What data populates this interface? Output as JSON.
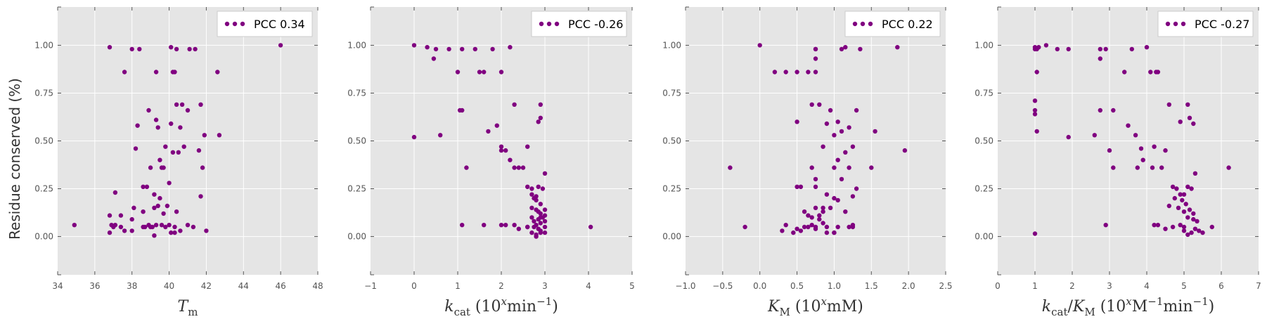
{
  "ylabel": "Residue conserved (%)",
  "colors": {
    "points": "#800080",
    "panel_bg": "#e5e5e5",
    "grid": "#ffffff",
    "axis_text": "#555555"
  },
  "chart_data": [
    {
      "type": "scatter",
      "xlabel": "T_m",
      "xlabel_display": "Tm",
      "legend": "PCC 0.34",
      "legend_position": "top-right",
      "grid": true,
      "xlim": [
        34,
        48
      ],
      "ylim": [
        -0.2,
        1.2
      ],
      "xticks": [
        "34",
        "36",
        "38",
        "40",
        "42",
        "44",
        "46",
        "48"
      ],
      "yticks": [
        "0.00",
        "0.25",
        "0.50",
        "0.75",
        "1.00"
      ],
      "x": [
        34.9,
        36.8,
        37.6,
        38.0,
        38.4,
        38.9,
        39.3,
        40.2,
        40.3,
        40.4,
        41.1,
        41.4,
        41.7,
        42.6,
        46.0,
        39.3,
        40.1,
        40.2,
        39.8,
        40.6,
        39.4,
        41.0,
        41.9,
        38.6,
        39.0,
        39.5,
        39.7,
        40.5,
        40.8,
        42.7,
        38.3,
        38.8,
        39.4,
        39.6,
        40.0,
        40.4,
        41.6,
        41.8,
        40.1,
        38.2,
        39.2,
        39.9,
        40.7,
        36.8,
        37.1,
        37.4,
        38.0,
        38.6,
        39.2,
        39.5,
        40.3,
        41.7,
        36.9,
        37.1,
        37.6,
        38.0,
        38.7,
        38.9,
        39.1,
        39.3,
        39.6,
        39.8,
        40.0,
        40.3,
        40.6,
        41.3,
        42.0,
        36.8,
        37.0,
        37.4,
        38.1,
        38.6,
        39.0,
        39.7,
        40.4,
        41.0,
        39.2,
        40.1
      ],
      "y": [
        0.06,
        0.99,
        0.86,
        0.98,
        0.98,
        0.66,
        0.86,
        0.86,
        0.86,
        0.98,
        0.98,
        0.98,
        0.69,
        0.86,
        1.0,
        0.61,
        0.59,
        0.44,
        0.47,
        0.57,
        0.57,
        0.66,
        0.53,
        0.26,
        0.36,
        0.4,
        0.36,
        0.44,
        0.47,
        0.53,
        0.58,
        0.26,
        0.16,
        0.36,
        0.28,
        0.69,
        0.45,
        0.36,
        0.99,
        0.46,
        0.22,
        0.16,
        0.69,
        0.11,
        0.23,
        0.11,
        0.09,
        0.13,
        0.15,
        0.2,
        0.05,
        0.21,
        0.06,
        0.06,
        0.03,
        0.03,
        0.05,
        0.06,
        0.05,
        0.06,
        0.06,
        0.05,
        0.06,
        0.02,
        0.03,
        0.05,
        0.03,
        0.02,
        0.05,
        0.05,
        0.15,
        0.05,
        0.05,
        0.12,
        0.13,
        0.06,
        0.005,
        0.02
      ]
    },
    {
      "type": "scatter",
      "xlabel": "k_cat (10^x min^-1)",
      "xlabel_display": "kcat (10^x min^-1)",
      "legend": "PCC -0.26",
      "legend_position": "top-right",
      "grid": true,
      "xlim": [
        -1,
        5
      ],
      "ylim": [
        -0.2,
        1.2
      ],
      "xticks": [
        "−1",
        "0",
        "1",
        "2",
        "3",
        "4",
        "5"
      ],
      "yticks": [
        "0.00",
        "0.25",
        "0.50",
        "0.75",
        "1.00"
      ],
      "x": [
        0.0,
        0.3,
        0.5,
        0.8,
        1.1,
        1.4,
        1.8,
        2.2,
        0.45,
        1.0,
        1.5,
        1.6,
        2.0,
        1.05,
        1.1,
        2.3,
        2.9,
        0.0,
        0.6,
        1.7,
        1.9,
        2.0,
        2.1,
        2.2,
        2.4,
        2.6,
        2.85,
        2.9,
        1.2,
        2.0,
        2.3,
        2.5,
        2.6,
        2.7,
        2.8,
        3.0,
        2.75,
        2.8,
        2.9,
        2.7,
        2.8,
        2.85,
        2.9,
        2.95,
        3.0,
        2.7,
        2.75,
        2.85,
        2.9,
        3.0,
        2.6,
        2.75,
        2.8,
        2.85,
        2.9,
        3.0,
        1.1,
        1.6,
        2.0,
        2.1,
        2.3,
        2.4,
        2.6,
        2.7,
        2.8,
        2.9,
        3.0,
        2.7,
        2.85,
        2.95,
        3.0,
        2.8,
        2.9,
        4.05
      ],
      "y": [
        1.0,
        0.99,
        0.98,
        0.98,
        0.98,
        0.98,
        0.98,
        0.99,
        0.93,
        0.86,
        0.86,
        0.86,
        0.86,
        0.66,
        0.66,
        0.69,
        0.69,
        0.52,
        0.53,
        0.55,
        0.58,
        0.47,
        0.45,
        0.4,
        0.36,
        0.47,
        0.6,
        0.62,
        0.36,
        0.45,
        0.36,
        0.36,
        0.26,
        0.22,
        0.21,
        0.33,
        0.2,
        0.19,
        0.17,
        0.15,
        0.14,
        0.13,
        0.12,
        0.1,
        0.11,
        0.1,
        0.08,
        0.09,
        0.07,
        0.08,
        0.05,
        0.05,
        0.06,
        0.04,
        0.03,
        0.02,
        0.06,
        0.06,
        0.06,
        0.06,
        0.06,
        0.04,
        0.05,
        0.02,
        0.01,
        0.02,
        0.05,
        0.25,
        0.26,
        0.25,
        0.14,
        0.0,
        0.1,
        0.05
      ]
    },
    {
      "type": "scatter",
      "xlabel": "K_M (10^x mM)",
      "xlabel_display": "KM (10^x mM)",
      "legend": "PCC 0.22",
      "legend_position": "top-right",
      "grid": true,
      "xlim": [
        -1.0,
        2.5
      ],
      "ylim": [
        -0.2,
        1.2
      ],
      "xticks": [
        "−1.0",
        "−0.5",
        "0.0",
        "0.5",
        "1.0",
        "1.5",
        "2.0",
        "2.5"
      ],
      "yticks": [
        "0.00",
        "0.25",
        "0.50",
        "0.75",
        "1.00"
      ],
      "x": [
        0.0,
        0.75,
        0.75,
        1.1,
        1.15,
        1.35,
        1.85,
        0.2,
        0.35,
        0.5,
        0.65,
        0.75,
        0.75,
        0.7,
        0.8,
        0.95,
        1.05,
        1.3,
        0.5,
        0.9,
        1.0,
        1.1,
        1.2,
        1.55,
        1.95,
        0.85,
        1.05,
        1.15,
        1.25,
        -0.4,
        0.5,
        0.7,
        0.75,
        1.0,
        1.1,
        1.2,
        0.55,
        0.75,
        0.9,
        1.0,
        1.25,
        1.5,
        0.6,
        0.65,
        0.7,
        0.75,
        0.8,
        0.85,
        0.95,
        1.05,
        1.15,
        1.3,
        0.7,
        0.75,
        0.85,
        0.9,
        1.0,
        1.2,
        1.25,
        -0.2,
        0.3,
        0.35,
        0.45,
        0.5,
        0.55,
        0.6,
        0.8,
        0.9,
        1.05,
        1.25,
        0.65,
        0.75,
        1.0,
        0.85
      ],
      "y": [
        1.0,
        0.98,
        0.98,
        0.98,
        0.99,
        0.98,
        0.99,
        0.86,
        0.86,
        0.86,
        0.86,
        0.86,
        0.93,
        0.69,
        0.69,
        0.66,
        0.6,
        0.66,
        0.6,
        0.59,
        0.53,
        0.55,
        0.57,
        0.55,
        0.45,
        0.47,
        0.4,
        0.44,
        0.47,
        0.36,
        0.26,
        0.36,
        0.3,
        0.36,
        0.3,
        0.36,
        0.26,
        0.26,
        0.22,
        0.2,
        0.21,
        0.36,
        0.13,
        0.11,
        0.1,
        0.15,
        0.11,
        0.13,
        0.15,
        0.19,
        0.13,
        0.25,
        0.06,
        0.05,
        0.07,
        0.05,
        0.02,
        0.05,
        0.05,
        0.05,
        0.03,
        0.06,
        0.02,
        0.04,
        0.03,
        0.05,
        0.09,
        0.02,
        0.05,
        0.06,
        0.05,
        0.04,
        0.02,
        0.15
      ]
    },
    {
      "type": "scatter",
      "xlabel": "k_cat/K_M (10^x M^-1 min^-1)",
      "xlabel_display": "kcat/KM (10^x M^-1 min^-1)",
      "legend": "PCC -0.27",
      "legend_position": "top-right",
      "grid": true,
      "xlim": [
        0,
        7
      ],
      "ylim": [
        -0.2,
        1.2
      ],
      "xticks": [
        "0",
        "1",
        "2",
        "3",
        "4",
        "5",
        "6",
        "7"
      ],
      "yticks": [
        "0.00",
        "0.25",
        "0.50",
        "0.75",
        "1.00"
      ],
      "x": [
        1.0,
        1.0,
        1.05,
        1.1,
        1.3,
        1.6,
        1.9,
        2.75,
        2.9,
        3.6,
        4.0,
        1.0,
        1.0,
        1.0,
        1.05,
        2.75,
        3.4,
        4.1,
        4.25,
        4.3,
        4.6,
        2.75,
        3.1,
        5.1,
        4.9,
        5.15,
        5.25,
        1.9,
        2.6,
        1.05,
        3.5,
        3.7,
        4.2,
        4.5,
        3.0,
        3.85,
        3.9,
        4.15,
        3.75,
        3.1,
        4.4,
        4.6,
        5.3,
        4.7,
        4.8,
        5.0,
        5.1,
        5.2,
        4.75,
        4.85,
        4.9,
        4.95,
        5.05,
        5.15,
        5.25,
        5.0,
        5.1,
        5.25,
        5.35,
        4.9,
        5.0,
        5.3,
        4.2,
        4.3,
        4.5,
        4.7,
        5.0,
        5.1,
        5.2,
        5.4,
        5.5,
        5.75,
        6.2,
        2.9,
        1.0
      ],
      "y": [
        0.99,
        0.98,
        0.98,
        0.99,
        1.0,
        0.98,
        0.98,
        0.98,
        0.98,
        0.98,
        0.99,
        0.71,
        0.66,
        0.64,
        0.86,
        0.66,
        0.86,
        0.86,
        0.86,
        0.86,
        0.69,
        0.93,
        0.66,
        0.69,
        0.6,
        0.62,
        0.59,
        0.52,
        0.53,
        0.55,
        0.58,
        0.53,
        0.47,
        0.45,
        0.45,
        0.46,
        0.4,
        0.36,
        0.36,
        0.36,
        0.36,
        0.16,
        0.33,
        0.26,
        0.25,
        0.22,
        0.26,
        0.25,
        0.2,
        0.15,
        0.22,
        0.19,
        0.17,
        0.14,
        0.12,
        0.13,
        0.1,
        0.09,
        0.08,
        0.06,
        0.05,
        0.04,
        0.06,
        0.06,
        0.04,
        0.05,
        0.03,
        0.01,
        0.02,
        0.03,
        0.02,
        0.05,
        0.36,
        0.06,
        0.015
      ]
    }
  ]
}
